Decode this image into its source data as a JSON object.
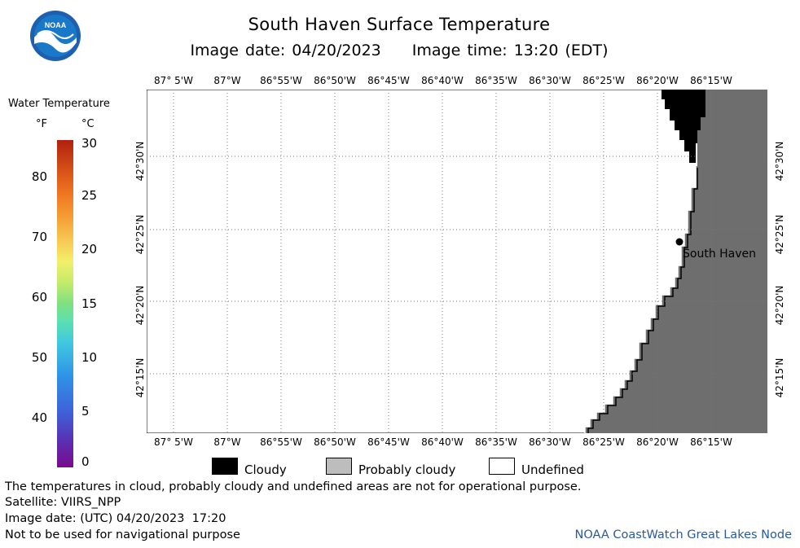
{
  "header": {
    "title": "South Haven Surface Temperature",
    "image_date": "Image date: 04/20/2023",
    "image_time": "Image time: 13:20 (EDT)",
    "logo_text": "NOAA"
  },
  "colorbar": {
    "title": "Water Temperature",
    "unit_f": "°F",
    "unit_c": "°C",
    "f_ticks": [
      "80",
      "70",
      "60",
      "50",
      "40"
    ],
    "c_ticks": [
      "30",
      "25",
      "20",
      "15",
      "10",
      "5",
      "0"
    ]
  },
  "map": {
    "lon_labels": [
      "87° 5'W",
      "87°W",
      "86°55'W",
      "86°50'W",
      "86°45'W",
      "86°40'W",
      "86°35'W",
      "86°30'W",
      "86°25'W",
      "86°20'W",
      "86°15'W"
    ],
    "lat_labels": [
      "42°30'N",
      "42°25'N",
      "42°20'N",
      "42°15'N"
    ],
    "place_label": "South Haven",
    "colors": {
      "land": "#6e6e6e",
      "cloud": "#000000",
      "water_undefined": "#ffffff",
      "grid": "#777777"
    }
  },
  "legend": {
    "cloudy": "Cloudy",
    "probably_cloudy": "Probably cloudy",
    "undefined": "Undefined",
    "colors": {
      "cloudy": "#000000",
      "probably_cloudy": "#bdbdbd",
      "undefined": "#ffffff"
    }
  },
  "footer": {
    "disclaimer": "The temperatures in cloud, probably cloudy and undefined areas are not for operational purpose.",
    "satellite": "Satellite: VIIRS_NPP",
    "utc_date": "Image date: (UTC) 04/20/2023  17:20",
    "nav_warning": "Not to be used for navigational purpose",
    "credit": "NOAA CoastWatch Great Lakes Node"
  }
}
